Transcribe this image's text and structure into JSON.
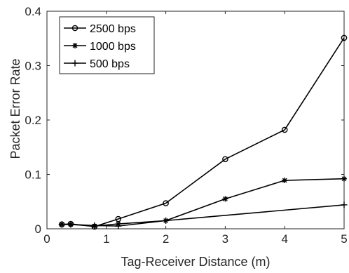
{
  "chart_data": {
    "type": "line",
    "title": "",
    "xlabel": "Tag-Receiver Distance (m)",
    "ylabel": "Packet Error Rate",
    "xlim": [
      0,
      5
    ],
    "ylim": [
      0,
      0.4
    ],
    "xticks": [
      0,
      1,
      2,
      3,
      4,
      5
    ],
    "yticks": [
      0,
      0.1,
      0.2,
      0.3,
      0.4
    ],
    "xtick_labels": [
      "0",
      "1",
      "2",
      "3",
      "4",
      "5"
    ],
    "ytick_labels": [
      "0",
      "0.1",
      "0.2",
      "0.3",
      "0.4"
    ],
    "grid": false,
    "legend_position": "top-left",
    "series": [
      {
        "name": "2500 bps",
        "marker": "circle",
        "color": "#000000",
        "x": [
          0.25,
          0.4,
          0.8,
          1.2,
          2,
          3,
          4,
          5
        ],
        "y": [
          0.008,
          0.009,
          0.004,
          0.018,
          0.047,
          0.128,
          0.182,
          0.351
        ]
      },
      {
        "name": "1000 bps",
        "marker": "asterisk",
        "color": "#000000",
        "x": [
          0.25,
          0.4,
          0.8,
          1.2,
          2,
          3,
          4,
          5
        ],
        "y": [
          0.008,
          0.008,
          0.005,
          0.009,
          0.015,
          0.055,
          0.089,
          0.092
        ]
      },
      {
        "name": "500 bps",
        "marker": "plus",
        "color": "#000000",
        "x": [
          0.25,
          0.4,
          0.8,
          1.2,
          2,
          5
        ],
        "y": [
          0.008,
          0.008,
          0.006,
          0.005,
          0.015,
          0.044
        ]
      }
    ]
  }
}
